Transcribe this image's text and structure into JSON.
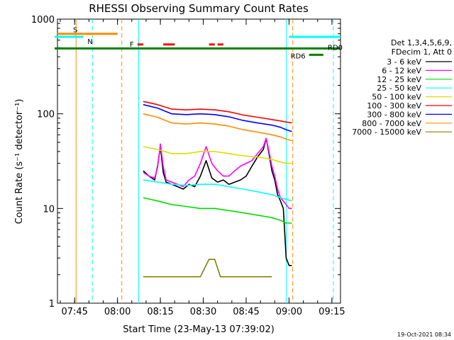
{
  "chart_data": {
    "type": "line",
    "title": "RHESSI Observing Summary Count Rates",
    "xlabel": "Start Time (23-May-13 07:39:02)",
    "ylabel": "Count Rate (s⁻¹ detector⁻¹)",
    "x_unit": "minutes after 07:39:02 UT",
    "xlim": [
      0,
      99
    ],
    "ylim": [
      1,
      1000
    ],
    "y_scale": "log",
    "x_ticks": [
      {
        "x": 6,
        "label": "07:45"
      },
      {
        "x": 21,
        "label": "08:00"
      },
      {
        "x": 36,
        "label": "08:15"
      },
      {
        "x": 51,
        "label": "08:30"
      },
      {
        "x": 66,
        "label": "08:45"
      },
      {
        "x": 81,
        "label": "09:00"
      },
      {
        "x": 96,
        "label": "09:15"
      }
    ],
    "y_ticks": [
      {
        "y": 1,
        "label": "1"
      },
      {
        "y": 10,
        "label": "10"
      },
      {
        "y": 100,
        "label": "100"
      },
      {
        "y": 1000,
        "label": "1000"
      }
    ],
    "legend": {
      "header": [
        "Det 1,3,4,5,6,9,",
        "FDecim 1, Att 0"
      ],
      "placement": "right"
    },
    "series": [
      {
        "name": "3 - 6 keV",
        "color": "#000000",
        "x": [
          30,
          32,
          34,
          35,
          36,
          37,
          38,
          40,
          42,
          44,
          46,
          48,
          50,
          52,
          54,
          56,
          58,
          60,
          62,
          64,
          66,
          68,
          70,
          72,
          73,
          74,
          75,
          76,
          77,
          78,
          79,
          80,
          81,
          82
        ],
        "y": [
          25,
          22,
          20,
          28,
          45,
          24,
          19,
          18,
          17,
          16,
          18,
          17,
          22,
          32,
          21,
          19,
          20,
          18,
          19,
          20,
          22,
          28,
          35,
          42,
          55,
          38,
          25,
          20,
          14,
          12,
          10,
          3,
          2.5,
          2.5
        ]
      },
      {
        "name": "6 - 12 keV",
        "color": "#ff00ff",
        "x": [
          30,
          32,
          34,
          35,
          36,
          37,
          38,
          40,
          42,
          44,
          46,
          48,
          50,
          52,
          54,
          56,
          58,
          60,
          62,
          64,
          66,
          68,
          70,
          72,
          73,
          74,
          75,
          76,
          77,
          78,
          79,
          80,
          81,
          82
        ],
        "y": [
          24,
          22,
          21,
          27,
          48,
          28,
          20,
          19,
          18,
          17,
          20,
          22,
          30,
          45,
          30,
          25,
          22,
          22,
          25,
          28,
          30,
          32,
          38,
          45,
          55,
          40,
          28,
          22,
          16,
          13,
          12,
          11,
          10,
          10
        ]
      },
      {
        "name": "12 - 25 keV",
        "color": "#00dd00",
        "x": [
          30,
          35,
          40,
          45,
          50,
          55,
          60,
          65,
          70,
          75,
          78,
          80,
          82
        ],
        "y": [
          13,
          12,
          11,
          10.5,
          10,
          10,
          9.5,
          9,
          8.5,
          8,
          7.5,
          7,
          7
        ]
      },
      {
        "name": "25 - 50 keV",
        "color": "#00ffff",
        "x": [
          30,
          35,
          40,
          45,
          50,
          55,
          60,
          65,
          70,
          75,
          78,
          80,
          82
        ],
        "y": [
          20,
          19,
          18,
          17.5,
          18,
          18,
          17,
          16,
          15,
          14,
          13,
          12.5,
          12
        ]
      },
      {
        "name": "50 - 100 keV",
        "color": "#dddd00",
        "x": [
          30,
          35,
          40,
          45,
          50,
          55,
          60,
          65,
          70,
          75,
          78,
          80,
          82
        ],
        "y": [
          45,
          42,
          38,
          38,
          40,
          40,
          38,
          36,
          35,
          33,
          31,
          30,
          30
        ]
      },
      {
        "name": "100 - 300 keV",
        "color": "#ff0000",
        "x": [
          30,
          35,
          40,
          45,
          50,
          55,
          60,
          65,
          70,
          75,
          78,
          80,
          82
        ],
        "y": [
          135,
          125,
          112,
          110,
          112,
          110,
          105,
          97,
          92,
          87,
          84,
          82,
          80
        ]
      },
      {
        "name": "300 - 800 keV",
        "color": "#0000ff",
        "x": [
          30,
          35,
          40,
          45,
          50,
          55,
          60,
          65,
          70,
          75,
          78,
          80,
          82
        ],
        "y": [
          125,
          115,
          100,
          98,
          100,
          98,
          93,
          85,
          80,
          76,
          72,
          68,
          65
        ]
      },
      {
        "name": "800 - 7000 keV",
        "color": "#ff8c00",
        "x": [
          30,
          35,
          40,
          45,
          50,
          55,
          60,
          65,
          70,
          75,
          78,
          80,
          82
        ],
        "y": [
          100,
          92,
          80,
          78,
          80,
          78,
          74,
          68,
          64,
          60,
          57,
          54,
          52
        ]
      },
      {
        "name": "7000 - 15000 keV",
        "color": "#808000",
        "x": [
          30,
          32,
          35,
          40,
          45,
          50,
          53,
          55,
          57,
          60,
          63,
          65,
          70,
          75
        ],
        "y": [
          1.9,
          1.9,
          1.9,
          1.9,
          1.9,
          1.9,
          2.9,
          2.9,
          1.9,
          1.9,
          1.9,
          1.9,
          1.9,
          1.9
        ]
      }
    ],
    "annotations": [
      {
        "label": "S",
        "color": "#ff8c00",
        "y": 700,
        "x_start": 0,
        "x_end": 21
      },
      {
        "label": "N",
        "color": "#00ffff",
        "y": 650,
        "x_start": -1,
        "x_end": 9
      },
      {
        "label": "F",
        "color": "#ff0000",
        "y": 540,
        "segments": [
          [
            28,
            30
          ],
          [
            37,
            41
          ],
          [
            53,
            55
          ],
          [
            56,
            58
          ]
        ]
      },
      {
        "label": "RD0",
        "color": "#00ffff",
        "y": 650,
        "x_start": 81,
        "x_end": 99
      },
      {
        "label": "RD6",
        "color": "#008000",
        "y": 420,
        "x_start": 88,
        "x_end": 93
      }
    ],
    "day_night_line": {
      "color": "#008000",
      "y": 490,
      "x_start": -1,
      "x_end": 99
    },
    "vertical_markers": [
      {
        "x": 6.5,
        "color": "#ff8c00",
        "style": "solid"
      },
      {
        "x": 12.2,
        "color": "#00ffff",
        "style": "dashed"
      },
      {
        "x": 22.5,
        "color": "#ff8c00",
        "style": "dashed"
      },
      {
        "x": 28.4,
        "color": "#00ffff",
        "style": "solid"
      },
      {
        "x": 80.0,
        "color": "#00ffff",
        "style": "solid"
      },
      {
        "x": 82.3,
        "color": "#ff8c00",
        "style": "dashed"
      },
      {
        "x": 96.5,
        "color": "#00ffff",
        "style": "dashed"
      }
    ],
    "footer_date": "19-Oct-2021 08:34"
  }
}
